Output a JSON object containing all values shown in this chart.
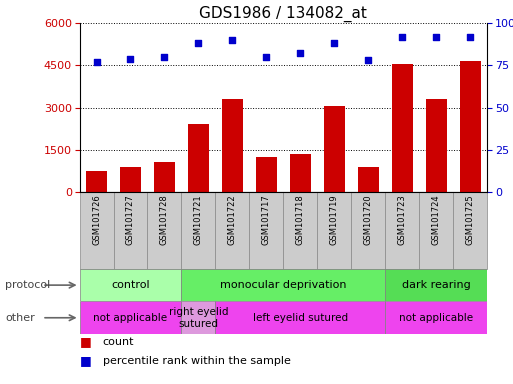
{
  "title": "GDS1986 / 134082_at",
  "samples": [
    "GSM101726",
    "GSM101727",
    "GSM101728",
    "GSM101721",
    "GSM101722",
    "GSM101717",
    "GSM101718",
    "GSM101719",
    "GSM101720",
    "GSM101723",
    "GSM101724",
    "GSM101725"
  ],
  "counts": [
    750,
    900,
    1050,
    2400,
    3300,
    1250,
    1350,
    3050,
    900,
    4550,
    3300,
    4650
  ],
  "percentiles": [
    77,
    79,
    80,
    88,
    90,
    80,
    82,
    88,
    78,
    92,
    92,
    92
  ],
  "bar_color": "#cc0000",
  "dot_color": "#0000cc",
  "ylim_left": [
    0,
    6000
  ],
  "ylim_right": [
    0,
    100
  ],
  "yticks_left": [
    0,
    1500,
    3000,
    4500,
    6000
  ],
  "yticks_right": [
    0,
    25,
    50,
    75,
    100
  ],
  "protocol_groups": [
    {
      "label": "control",
      "start": 0,
      "end": 3,
      "color": "#aaffaa"
    },
    {
      "label": "monocular deprivation",
      "start": 3,
      "end": 9,
      "color": "#66ee66"
    },
    {
      "label": "dark rearing",
      "start": 9,
      "end": 12,
      "color": "#55dd55"
    }
  ],
  "other_groups": [
    {
      "label": "not applicable",
      "start": 0,
      "end": 3,
      "color": "#ee44ee"
    },
    {
      "label": "right eyelid\nsutured",
      "start": 3,
      "end": 4,
      "color": "#dd99dd"
    },
    {
      "label": "left eyelid sutured",
      "start": 4,
      "end": 9,
      "color": "#ee44ee"
    },
    {
      "label": "not applicable",
      "start": 9,
      "end": 12,
      "color": "#ee44ee"
    }
  ],
  "legend_count_label": "count",
  "legend_pct_label": "percentile rank within the sample",
  "protocol_label": "protocol",
  "other_label": "other",
  "label_bg_color": "#cccccc",
  "label_edge_color": "#888888"
}
